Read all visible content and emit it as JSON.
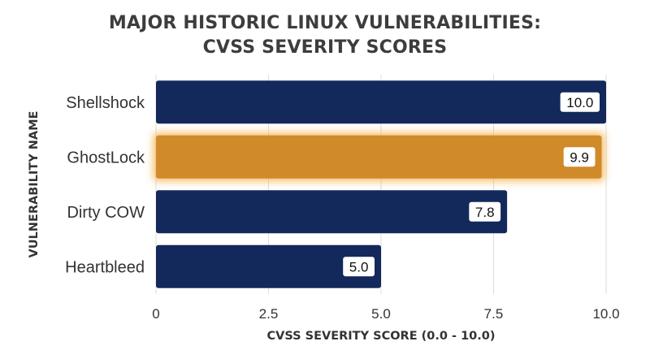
{
  "chart_data": {
    "type": "bar",
    "orientation": "horizontal",
    "title": [
      "MAJOR HISTORIC LINUX VULNERABILITIES:",
      "CVSS SEVERITY SCORES"
    ],
    "xlabel": "CVSS SEVERITY SCORE (0.0 - 10.0)",
    "ylabel": "VULNERABILITY NAME",
    "categories": [
      "Shellshock",
      "GhostLock",
      "Dirty COW",
      "Heartbleed"
    ],
    "values": [
      10.0,
      9.9,
      7.8,
      5.0
    ],
    "value_labels": [
      "10.0",
      "9.9",
      "7.8",
      "5.0"
    ],
    "xlim": [
      0,
      10
    ],
    "xticks": [
      0,
      2.5,
      5.0,
      7.5,
      10.0
    ],
    "xtick_labels": [
      "0",
      "2.5",
      "5.0",
      "7.5",
      "10.0"
    ],
    "grid": "vertical",
    "highlighted_category": "GhostLock",
    "colors": {
      "bar": "#13295c",
      "highlight": "#d08a2a",
      "highlight_glow": "#f3b24a",
      "grid": "#dddddd",
      "title": "#3d3d3d"
    }
  }
}
